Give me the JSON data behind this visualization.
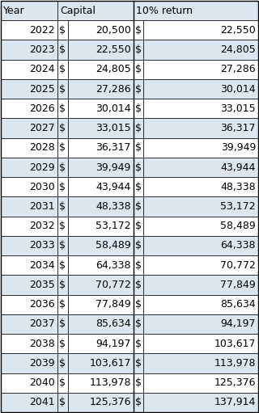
{
  "col_headers": [
    "Year",
    "Capital",
    "",
    "10% return",
    ""
  ],
  "rows": [
    [
      "2022",
      "$",
      "20,500",
      "$",
      "22,550"
    ],
    [
      "2023",
      "$",
      "22,550",
      "$",
      "24,805"
    ],
    [
      "2024",
      "$",
      "24,805",
      "$",
      "27,286"
    ],
    [
      "2025",
      "$",
      "27,286",
      "$",
      "30,014"
    ],
    [
      "2026",
      "$",
      "30,014",
      "$",
      "33,015"
    ],
    [
      "2027",
      "$",
      "33,015",
      "$",
      "36,317"
    ],
    [
      "2028",
      "$",
      "36,317",
      "$",
      "39,949"
    ],
    [
      "2029",
      "$",
      "39,949",
      "$",
      "43,944"
    ],
    [
      "2030",
      "$",
      "43,944",
      "$",
      "48,338"
    ],
    [
      "2031",
      "$",
      "48,338",
      "$",
      "53,172"
    ],
    [
      "2032",
      "$",
      "53,172",
      "$",
      "58,489"
    ],
    [
      "2033",
      "$",
      "58,489",
      "$",
      "64,338"
    ],
    [
      "2034",
      "$",
      "64,338",
      "$",
      "70,772"
    ],
    [
      "2035",
      "$",
      "70,772",
      "$",
      "77,849"
    ],
    [
      "2036",
      "$",
      "77,849",
      "$",
      "85,634"
    ],
    [
      "2037",
      "$",
      "85,634",
      "$",
      "94,197"
    ],
    [
      "2038",
      "$",
      "94,197",
      "$",
      "103,617"
    ],
    [
      "2039",
      "$",
      "103,617",
      "$",
      "113,978"
    ],
    [
      "2040",
      "$",
      "113,978",
      "$",
      "125,376"
    ],
    [
      "2041",
      "$",
      "125,376",
      "$",
      "137,914"
    ]
  ],
  "header_bg": "#dce6f1",
  "row_bg_light": "#ffffff",
  "row_bg_blue": "#dce6f1",
  "border_color": "#000000",
  "text_color": "#000000",
  "font_size": 9.0
}
